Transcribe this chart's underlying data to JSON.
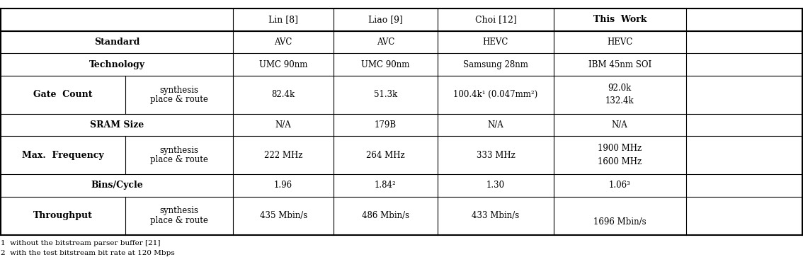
{
  "footnotes": [
    "1  without the bitstream parser buffer [21]",
    "2  with the test bitstream bit rate at 120 Mbps"
  ],
  "col_headers": [
    "",
    "",
    "Lin [8]",
    "Liao [9]",
    "Choi [12]",
    "This  Work"
  ],
  "rows": [
    {
      "label_bold": "Standard",
      "label_sub": "",
      "col3": "AVC",
      "col4": "AVC",
      "col5": "HEVC",
      "col6": "HEVC",
      "span_label": true
    },
    {
      "label_bold": "Technology",
      "label_sub": "",
      "col3": "UMC 90nm",
      "col4": "UMC 90nm",
      "col5": "Samsung 28nm",
      "col6": "IBM 45nm SOI",
      "span_label": true
    },
    {
      "label_bold": "Gate  Count",
      "label_sub": "synthesis\nplace & route",
      "col3": "82.4k",
      "col4": "51.3k",
      "col5": "100.4k¹ (0.047mm²)",
      "col6": "92.0k\n\n132.4k",
      "span_label": false
    },
    {
      "label_bold": "SRAM Size",
      "label_sub": "",
      "col3": "N/A",
      "col4": "179B",
      "col5": "N/A",
      "col6": "N/A",
      "span_label": true
    },
    {
      "label_bold": "Max.  Frequency",
      "label_sub": "synthesis\nplace & route",
      "col3": "222 MHz",
      "col4": "264 MHz",
      "col5": "333 MHz",
      "col6": "1900 MHz\n\n1600 MHz",
      "span_label": false
    },
    {
      "label_bold": "Bins/Cycle",
      "label_sub": "",
      "col3": "1.96",
      "col4": "1.84²",
      "col5": "1.30",
      "col6": "1.06³",
      "span_label": true
    },
    {
      "label_bold": "Throughput",
      "label_sub": "synthesis\nplace & route",
      "col3": "435 Mbin/s",
      "col4": "486 Mbin/s",
      "col5": "433 Mbin/s",
      "col6": "\n\n1696 Mbin/s",
      "span_label": false
    }
  ]
}
